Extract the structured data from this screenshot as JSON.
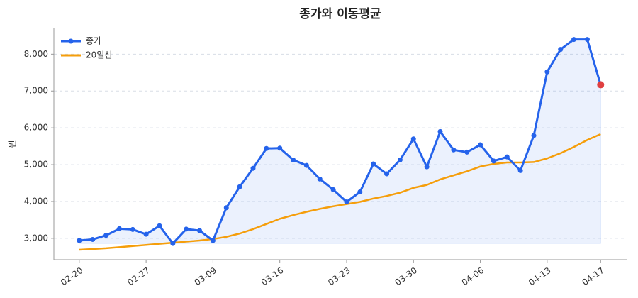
{
  "chart_data": {
    "type": "line",
    "title": "종가와 이동평균",
    "y_label": "원",
    "categories": [
      "02-20",
      null,
      null,
      null,
      null,
      "02-27",
      null,
      null,
      null,
      null,
      "03-09",
      null,
      null,
      null,
      null,
      "03-16",
      null,
      null,
      null,
      null,
      "03-23",
      null,
      null,
      null,
      null,
      "03-30",
      null,
      null,
      null,
      null,
      "04-06",
      null,
      null,
      null,
      null,
      "04-13",
      null,
      null,
      null,
      "04-17"
    ],
    "series": [
      {
        "name": "종가",
        "color": "#2563eb",
        "values": [
          2940,
          2970,
          3080,
          3260,
          3240,
          3110,
          3340,
          2860,
          3250,
          3210,
          2940,
          3830,
          4400,
          4900,
          5440,
          5450,
          5130,
          4980,
          4610,
          4320,
          3990,
          4260,
          5020,
          4750,
          5130,
          5700,
          4940,
          5900,
          5400,
          5340,
          5540,
          5100,
          5210,
          4840,
          5790,
          7520,
          8130,
          8400,
          8400,
          7170
        ]
      },
      {
        "name": "20일선",
        "color": "#f59e0b",
        "values": [
          2690,
          2710,
          2730,
          2760,
          2790,
          2820,
          2850,
          2880,
          2910,
          2940,
          2980,
          3040,
          3130,
          3250,
          3390,
          3530,
          3630,
          3720,
          3800,
          3870,
          3930,
          3990,
          4080,
          4150,
          4240,
          4370,
          4450,
          4600,
          4710,
          4820,
          4950,
          5020,
          5060,
          5060,
          5070,
          5170,
          5310,
          5480,
          5670,
          5830
        ]
      }
    ],
    "last_point_color": "#e04040",
    "area_color": "#2563eb",
    "ylim": [
      2420,
      8700
    ],
    "yticks": [
      {
        "value": 3000,
        "label": "3,000"
      },
      {
        "value": 4000,
        "label": "4,000"
      },
      {
        "value": 5000,
        "label": "5,000"
      },
      {
        "value": 6000,
        "label": "6,000"
      },
      {
        "value": 7000,
        "label": "7,000"
      },
      {
        "value": 8000,
        "label": "8,000"
      }
    ],
    "grid": true,
    "legend": "upper-left"
  }
}
